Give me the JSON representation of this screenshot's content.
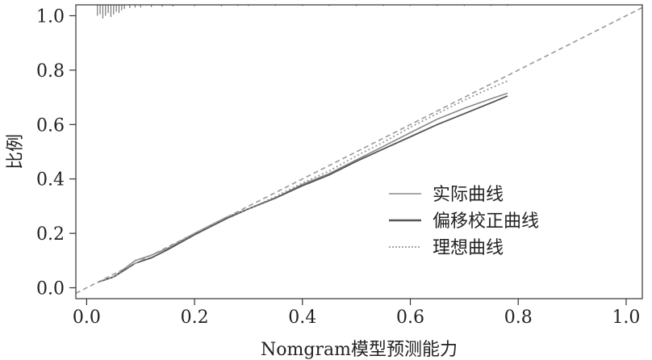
{
  "chart_data": {
    "type": "line",
    "xlabel": "Nomgram模型预测能力",
    "ylabel": "比例",
    "xlim": [
      -0.02,
      1.03
    ],
    "ylim": [
      -0.04,
      1.04
    ],
    "x_ticks": [
      0.0,
      0.2,
      0.4,
      0.6,
      0.8,
      1.0
    ],
    "x_tick_labels": [
      "0.0",
      "0.2",
      "0.4",
      "0.6",
      "0.8",
      "1.0"
    ],
    "y_ticks": [
      0.0,
      0.2,
      0.4,
      0.6,
      0.8,
      1.0
    ],
    "y_tick_labels": [
      "0.0",
      "0.2",
      "0.4",
      "0.6",
      "0.8",
      "1.0"
    ],
    "grid": false,
    "legend_position": "bottom-right",
    "legend": [
      "实际曲线",
      "偏移校正曲线",
      "理想曲线"
    ],
    "series": [
      {
        "name": "实际曲线",
        "style": "solid-light",
        "x": [
          0.02,
          0.05,
          0.07,
          0.09,
          0.12,
          0.15,
          0.2,
          0.26,
          0.3,
          0.35,
          0.4,
          0.45,
          0.5,
          0.55,
          0.6,
          0.65,
          0.7,
          0.75,
          0.78
        ],
        "y": [
          0.02,
          0.04,
          0.07,
          0.1,
          0.12,
          0.145,
          0.2,
          0.26,
          0.29,
          0.33,
          0.38,
          0.42,
          0.47,
          0.52,
          0.57,
          0.62,
          0.66,
          0.695,
          0.715
        ]
      },
      {
        "name": "偏移校正曲线",
        "style": "solid-dark",
        "x": [
          0.02,
          0.05,
          0.07,
          0.09,
          0.12,
          0.15,
          0.2,
          0.26,
          0.3,
          0.35,
          0.4,
          0.45,
          0.5,
          0.55,
          0.6,
          0.65,
          0.7,
          0.75,
          0.78
        ],
        "y": [
          0.02,
          0.04,
          0.065,
          0.09,
          0.11,
          0.14,
          0.195,
          0.255,
          0.29,
          0.33,
          0.375,
          0.415,
          0.465,
          0.51,
          0.555,
          0.6,
          0.64,
          0.68,
          0.705
        ]
      },
      {
        "name": "理想曲线",
        "style": "dotted",
        "x": [
          0.02,
          0.05,
          0.07,
          0.09,
          0.12,
          0.15,
          0.2,
          0.26,
          0.3,
          0.35,
          0.4,
          0.45,
          0.5,
          0.55,
          0.6,
          0.65,
          0.7,
          0.75,
          0.78
        ],
        "y": [
          0.02,
          0.04,
          0.07,
          0.1,
          0.12,
          0.145,
          0.2,
          0.26,
          0.29,
          0.335,
          0.385,
          0.43,
          0.485,
          0.535,
          0.59,
          0.64,
          0.69,
          0.735,
          0.76
        ]
      },
      {
        "name": "",
        "style": "reference-dashed",
        "x": [
          -0.02,
          1.03
        ],
        "y": [
          -0.02,
          1.03
        ]
      }
    ],
    "rug_top": [
      {
        "x": 0.02,
        "h": 0.04
      },
      {
        "x": 0.025,
        "h": 0.035
      },
      {
        "x": 0.03,
        "h": 0.05
      },
      {
        "x": 0.035,
        "h": 0.04
      },
      {
        "x": 0.04,
        "h": 0.03
      },
      {
        "x": 0.045,
        "h": 0.045
      },
      {
        "x": 0.05,
        "h": 0.035
      },
      {
        "x": 0.055,
        "h": 0.025
      },
      {
        "x": 0.06,
        "h": 0.03
      },
      {
        "x": 0.065,
        "h": 0.02
      },
      {
        "x": 0.07,
        "h": 0.015
      },
      {
        "x": 0.08,
        "h": 0.012
      },
      {
        "x": 0.09,
        "h": 0.01
      },
      {
        "x": 0.1,
        "h": 0.01
      },
      {
        "x": 0.12,
        "h": 0.008
      },
      {
        "x": 0.14,
        "h": 0.007
      },
      {
        "x": 0.16,
        "h": 0.006
      },
      {
        "x": 0.2,
        "h": 0.005
      },
      {
        "x": 0.25,
        "h": 0.005
      },
      {
        "x": 0.28,
        "h": 0.004
      },
      {
        "x": 0.3,
        "h": 0.004
      },
      {
        "x": 0.35,
        "h": 0.004
      },
      {
        "x": 0.4,
        "h": 0.004
      },
      {
        "x": 0.45,
        "h": 0.004
      },
      {
        "x": 0.5,
        "h": 0.004
      },
      {
        "x": 0.55,
        "h": 0.004
      },
      {
        "x": 0.6,
        "h": 0.004
      },
      {
        "x": 0.65,
        "h": 0.004
      },
      {
        "x": 0.7,
        "h": 0.004
      },
      {
        "x": 0.75,
        "h": 0.004
      },
      {
        "x": 0.78,
        "h": 0.004
      }
    ]
  },
  "colors": {
    "axis": "#333333",
    "apparent": "#8a8a8a",
    "bias_corrected": "#555555",
    "ideal": "#9a9a9a",
    "reference": "#9a9a9a",
    "rug": "#777777",
    "text": "#222222"
  }
}
